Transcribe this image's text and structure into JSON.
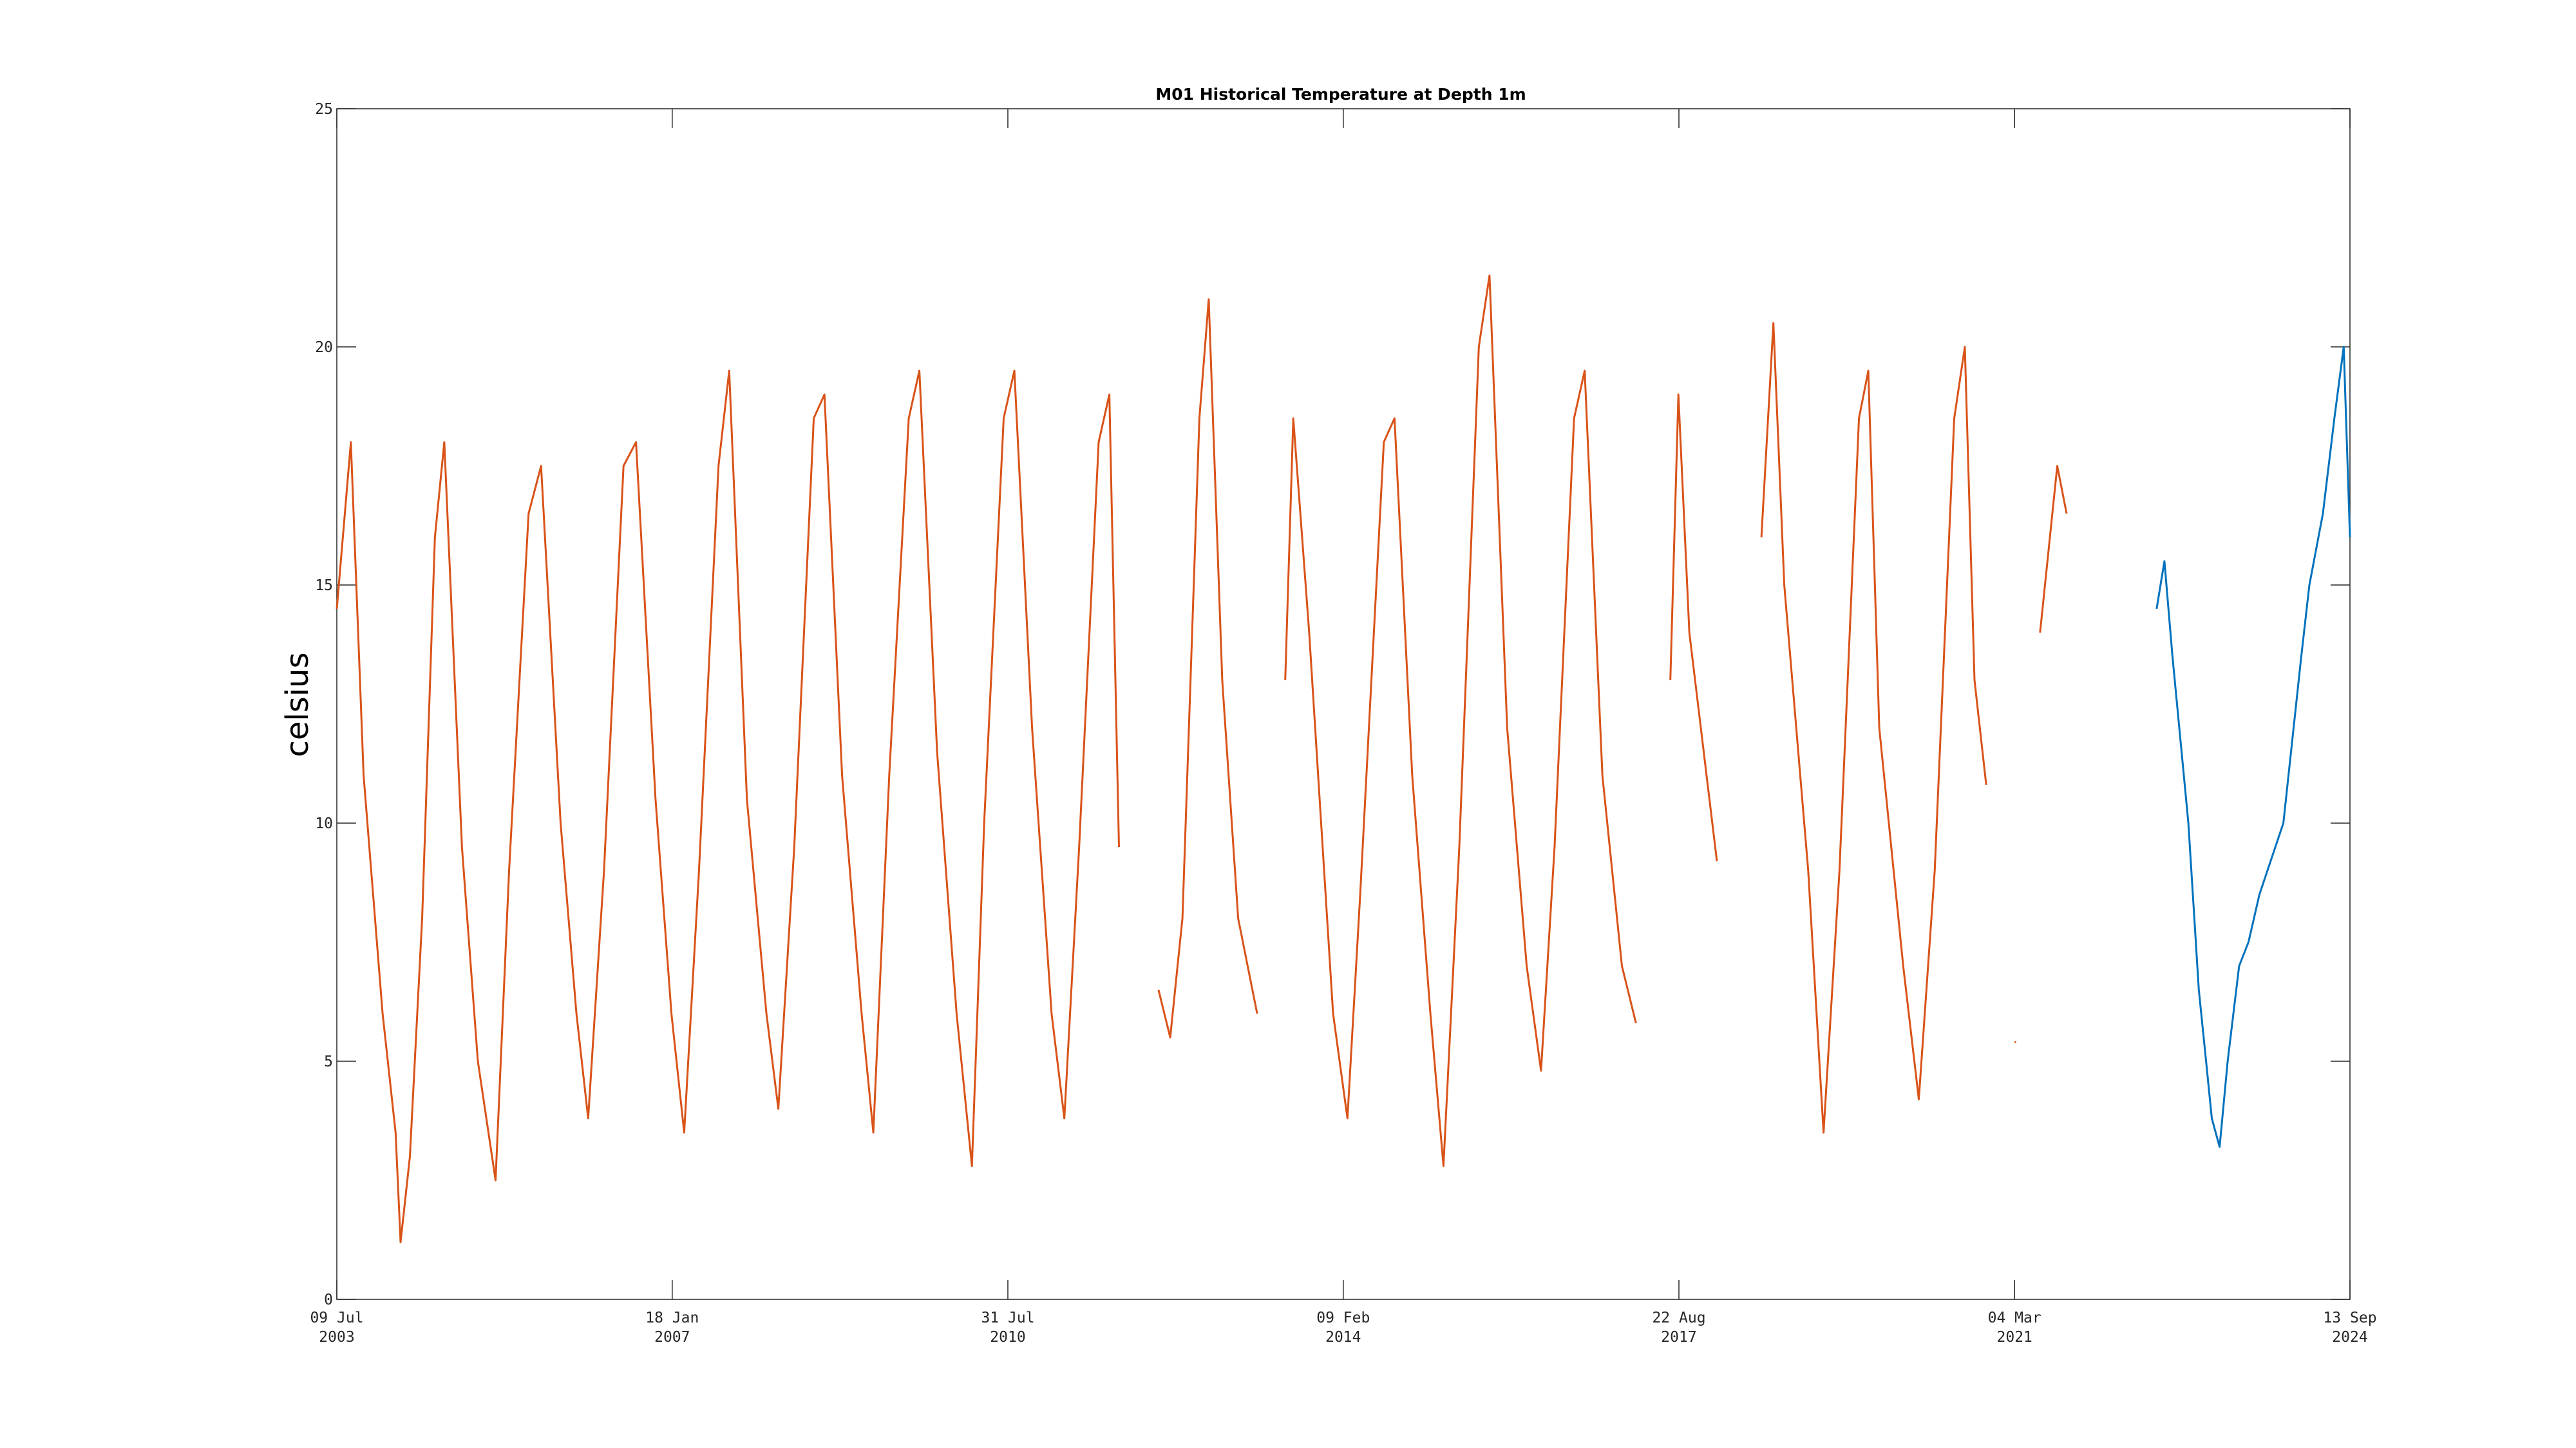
{
  "chart_data": {
    "type": "line",
    "title": "M01 Historical Temperature at Depth 1m",
    "ylabel": "celsius",
    "xlabel": "",
    "xlim": [
      "2003-07-09",
      "2024-09-13"
    ],
    "ylim": [
      0,
      25
    ],
    "yticks": [
      0,
      5,
      10,
      15,
      20,
      25
    ],
    "xticks": [
      {
        "date": "2003-07-09",
        "line1": "09 Jul",
        "line2": "2003"
      },
      {
        "date": "2007-01-18",
        "line1": "18 Jan",
        "line2": "2007"
      },
      {
        "date": "2010-07-31",
        "line1": "31 Jul",
        "line2": "2010"
      },
      {
        "date": "2014-02-09",
        "line1": "09 Feb",
        "line2": "2014"
      },
      {
        "date": "2017-08-22",
        "line1": "22 Aug",
        "line2": "2017"
      },
      {
        "date": "2021-03-04",
        "line1": "04 Mar",
        "line2": "2021"
      },
      {
        "date": "2024-09-13",
        "line1": "13 Sep",
        "line2": "2024"
      }
    ],
    "grid": false,
    "series": [
      {
        "color": "#d95319",
        "x": [
          "2003-07-09",
          "2003-09-01",
          "2003-10-20",
          "2004-01-01",
          "2004-02-20",
          "2004-03-10",
          "2004-04-15",
          "2004-06-01",
          "2004-07-20",
          "2004-08-25",
          "2004-11-01",
          "2005-01-01",
          "2005-03-10",
          "2005-05-01",
          "2005-07-15",
          "2005-09-01",
          "2005-11-15",
          "2006-01-15",
          "2006-03-01",
          "2006-05-01",
          "2006-07-15",
          "2006-09-01",
          "2006-11-15",
          "2007-01-15",
          "2007-03-05",
          "2007-05-01",
          "2007-07-15",
          "2007-08-25",
          "2007-11-01",
          "2008-01-15",
          "2008-03-01",
          "2008-05-01",
          "2008-07-15",
          "2008-08-25",
          "2008-11-01",
          "2009-01-15",
          "2009-03-01",
          "2009-05-01",
          "2009-07-15",
          "2009-08-25",
          "2009-11-01",
          "2010-01-15",
          "2010-03-15",
          "2010-05-01",
          "2010-07-15",
          "2010-08-25",
          "2010-11-01",
          "2011-01-15",
          "2011-03-05",
          "2011-05-01",
          "2011-07-15",
          "2011-08-25",
          "2011-10-01",
          null,
          "2012-03-01",
          "2012-04-15",
          "2012-06-01",
          "2012-08-05",
          "2012-09-10",
          "2012-11-01",
          "2013-01-01",
          "2013-03-15",
          null,
          "2013-07-01",
          "2013-08-01",
          "2013-10-01",
          "2014-01-01",
          "2014-02-25",
          "2014-04-15",
          "2014-07-15",
          "2014-08-25",
          "2014-11-01",
          "2015-01-10",
          "2015-03-01",
          "2015-05-01",
          "2015-07-15",
          "2015-08-25",
          "2015-11-01",
          "2016-01-15",
          "2016-03-10",
          "2016-05-01",
          "2016-07-15",
          "2016-08-25",
          "2016-11-01",
          "2017-01-15",
          "2017-03-10",
          null,
          "2017-07-20",
          "2017-08-20",
          "2017-10-01",
          "2018-01-15",
          null,
          "2018-07-05",
          "2018-08-20",
          "2018-10-01",
          "2019-01-01",
          "2019-03-01",
          "2019-05-01",
          "2019-07-15",
          "2019-08-20",
          "2019-10-01",
          "2020-01-01",
          "2020-03-01",
          "2020-05-01",
          "2020-07-15",
          "2020-08-25",
          "2020-10-01",
          "2020-11-15",
          null,
          "2021-06-10",
          "2021-08-15",
          "2021-09-20",
          null,
          "2021-03-04",
          "2021-03-10"
        ],
        "y": [
          14.5,
          18.0,
          11.0,
          6.0,
          3.5,
          1.2,
          3.0,
          8.0,
          16.0,
          18.0,
          9.5,
          5.0,
          2.5,
          9.0,
          16.5,
          17.5,
          10.0,
          6.0,
          3.8,
          9.0,
          17.5,
          18.0,
          10.5,
          6.0,
          3.5,
          9.0,
          17.5,
          19.5,
          10.5,
          6.0,
          4.0,
          9.5,
          18.5,
          19.0,
          11.0,
          6.0,
          3.5,
          11.0,
          18.5,
          19.5,
          11.5,
          6.0,
          2.8,
          10.0,
          18.5,
          19.5,
          12.0,
          6.0,
          3.8,
          9.5,
          18.0,
          19.0,
          9.5,
          null,
          6.5,
          5.5,
          8.0,
          18.5,
          21.0,
          13.0,
          8.0,
          6.0,
          null,
          13.0,
          18.5,
          14.0,
          6.0,
          3.8,
          8.5,
          18.0,
          18.5,
          11.0,
          6.0,
          2.8,
          9.5,
          20.0,
          21.5,
          12.0,
          7.0,
          4.8,
          9.5,
          18.5,
          19.5,
          11.0,
          7.0,
          5.8,
          null,
          13.0,
          19.0,
          14.0,
          9.2,
          null,
          16.0,
          20.5,
          15.0,
          9.0,
          3.5,
          9.0,
          18.5,
          19.5,
          12.0,
          7.0,
          4.2,
          9.0,
          18.5,
          20.0,
          13.0,
          10.8,
          null,
          14.0,
          17.5,
          16.5,
          null,
          5.4,
          5.4
        ]
      },
      {
        "color": "#0072bd",
        "x": [
          "2022-09-01",
          "2022-10-01",
          "2022-11-01",
          "2023-01-01",
          "2023-02-10",
          "2023-03-10",
          "2023-04-01",
          "2023-05-01",
          "2023-06-01",
          "2023-07-15",
          "2023-08-20",
          "2023-10-01",
          "2024-01-01",
          "2024-03-10",
          "2024-04-10",
          "2024-06-01",
          "2024-07-15",
          "2024-08-20",
          "2024-09-13"
        ],
        "y": [
          14.5,
          15.5,
          13.5,
          10.0,
          6.5,
          5.0,
          3.8,
          3.2,
          5.0,
          7.0,
          7.5,
          8.5,
          10.0,
          13.5,
          15.0,
          16.5,
          18.5,
          20.0,
          16.0
        ]
      }
    ]
  }
}
